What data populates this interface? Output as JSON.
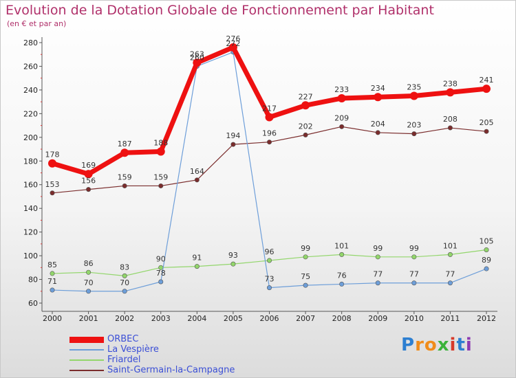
{
  "header": {
    "title": "Evolution de la Dotation Globale de Fonctionnement par Habitant",
    "subtitle": "(en € et par an)"
  },
  "logo": {
    "text": "Proxiti",
    "letters": [
      "P",
      "r",
      "o",
      "x",
      "i",
      "t",
      "i"
    ],
    "colors": [
      "#2d7fd1",
      "#f08c1a",
      "#f08c1a",
      "#3bb23b",
      "#d83a2a",
      "#2d7fd1",
      "#8c3bb2"
    ]
  },
  "chart_data": {
    "type": "line",
    "title": "Evolution de la Dotation Globale de Fonctionnement par Habitant",
    "subtitle": "(en € et par an)",
    "xlabel": "",
    "ylabel": "",
    "categories": [
      "2000",
      "2001",
      "2002",
      "2003",
      "2004",
      "2005",
      "2006",
      "2007",
      "2008",
      "2009",
      "2010",
      "2011",
      "2012"
    ],
    "ylim": [
      60,
      280
    ],
    "yticks": [
      60,
      80,
      100,
      120,
      140,
      160,
      180,
      200,
      220,
      240,
      260,
      280
    ],
    "grid": false,
    "legend_position": "bottom-left",
    "series": [
      {
        "name": "ORBEC",
        "color": "#ee1111",
        "weight": "heavy",
        "values": [
          178,
          169,
          187,
          188,
          263,
          276,
          217,
          227,
          233,
          234,
          235,
          238,
          241
        ]
      },
      {
        "name": "La Vespière",
        "color": "#6d9ed9",
        "weight": "thin",
        "values": [
          71,
          70,
          70,
          78,
          260,
          272,
          73,
          75,
          76,
          77,
          77,
          77,
          89
        ]
      },
      {
        "name": "Friardel",
        "color": "#92d66b",
        "weight": "thin",
        "values": [
          85,
          86,
          83,
          90,
          91,
          93,
          96,
          99,
          101,
          99,
          99,
          101,
          105
        ]
      },
      {
        "name": "Saint-Germain-la-Campagne",
        "color": "#7a2c2c",
        "weight": "thin",
        "values": [
          153,
          156,
          159,
          159,
          164,
          194,
          196,
          202,
          209,
          204,
          203,
          208,
          205
        ]
      }
    ]
  }
}
